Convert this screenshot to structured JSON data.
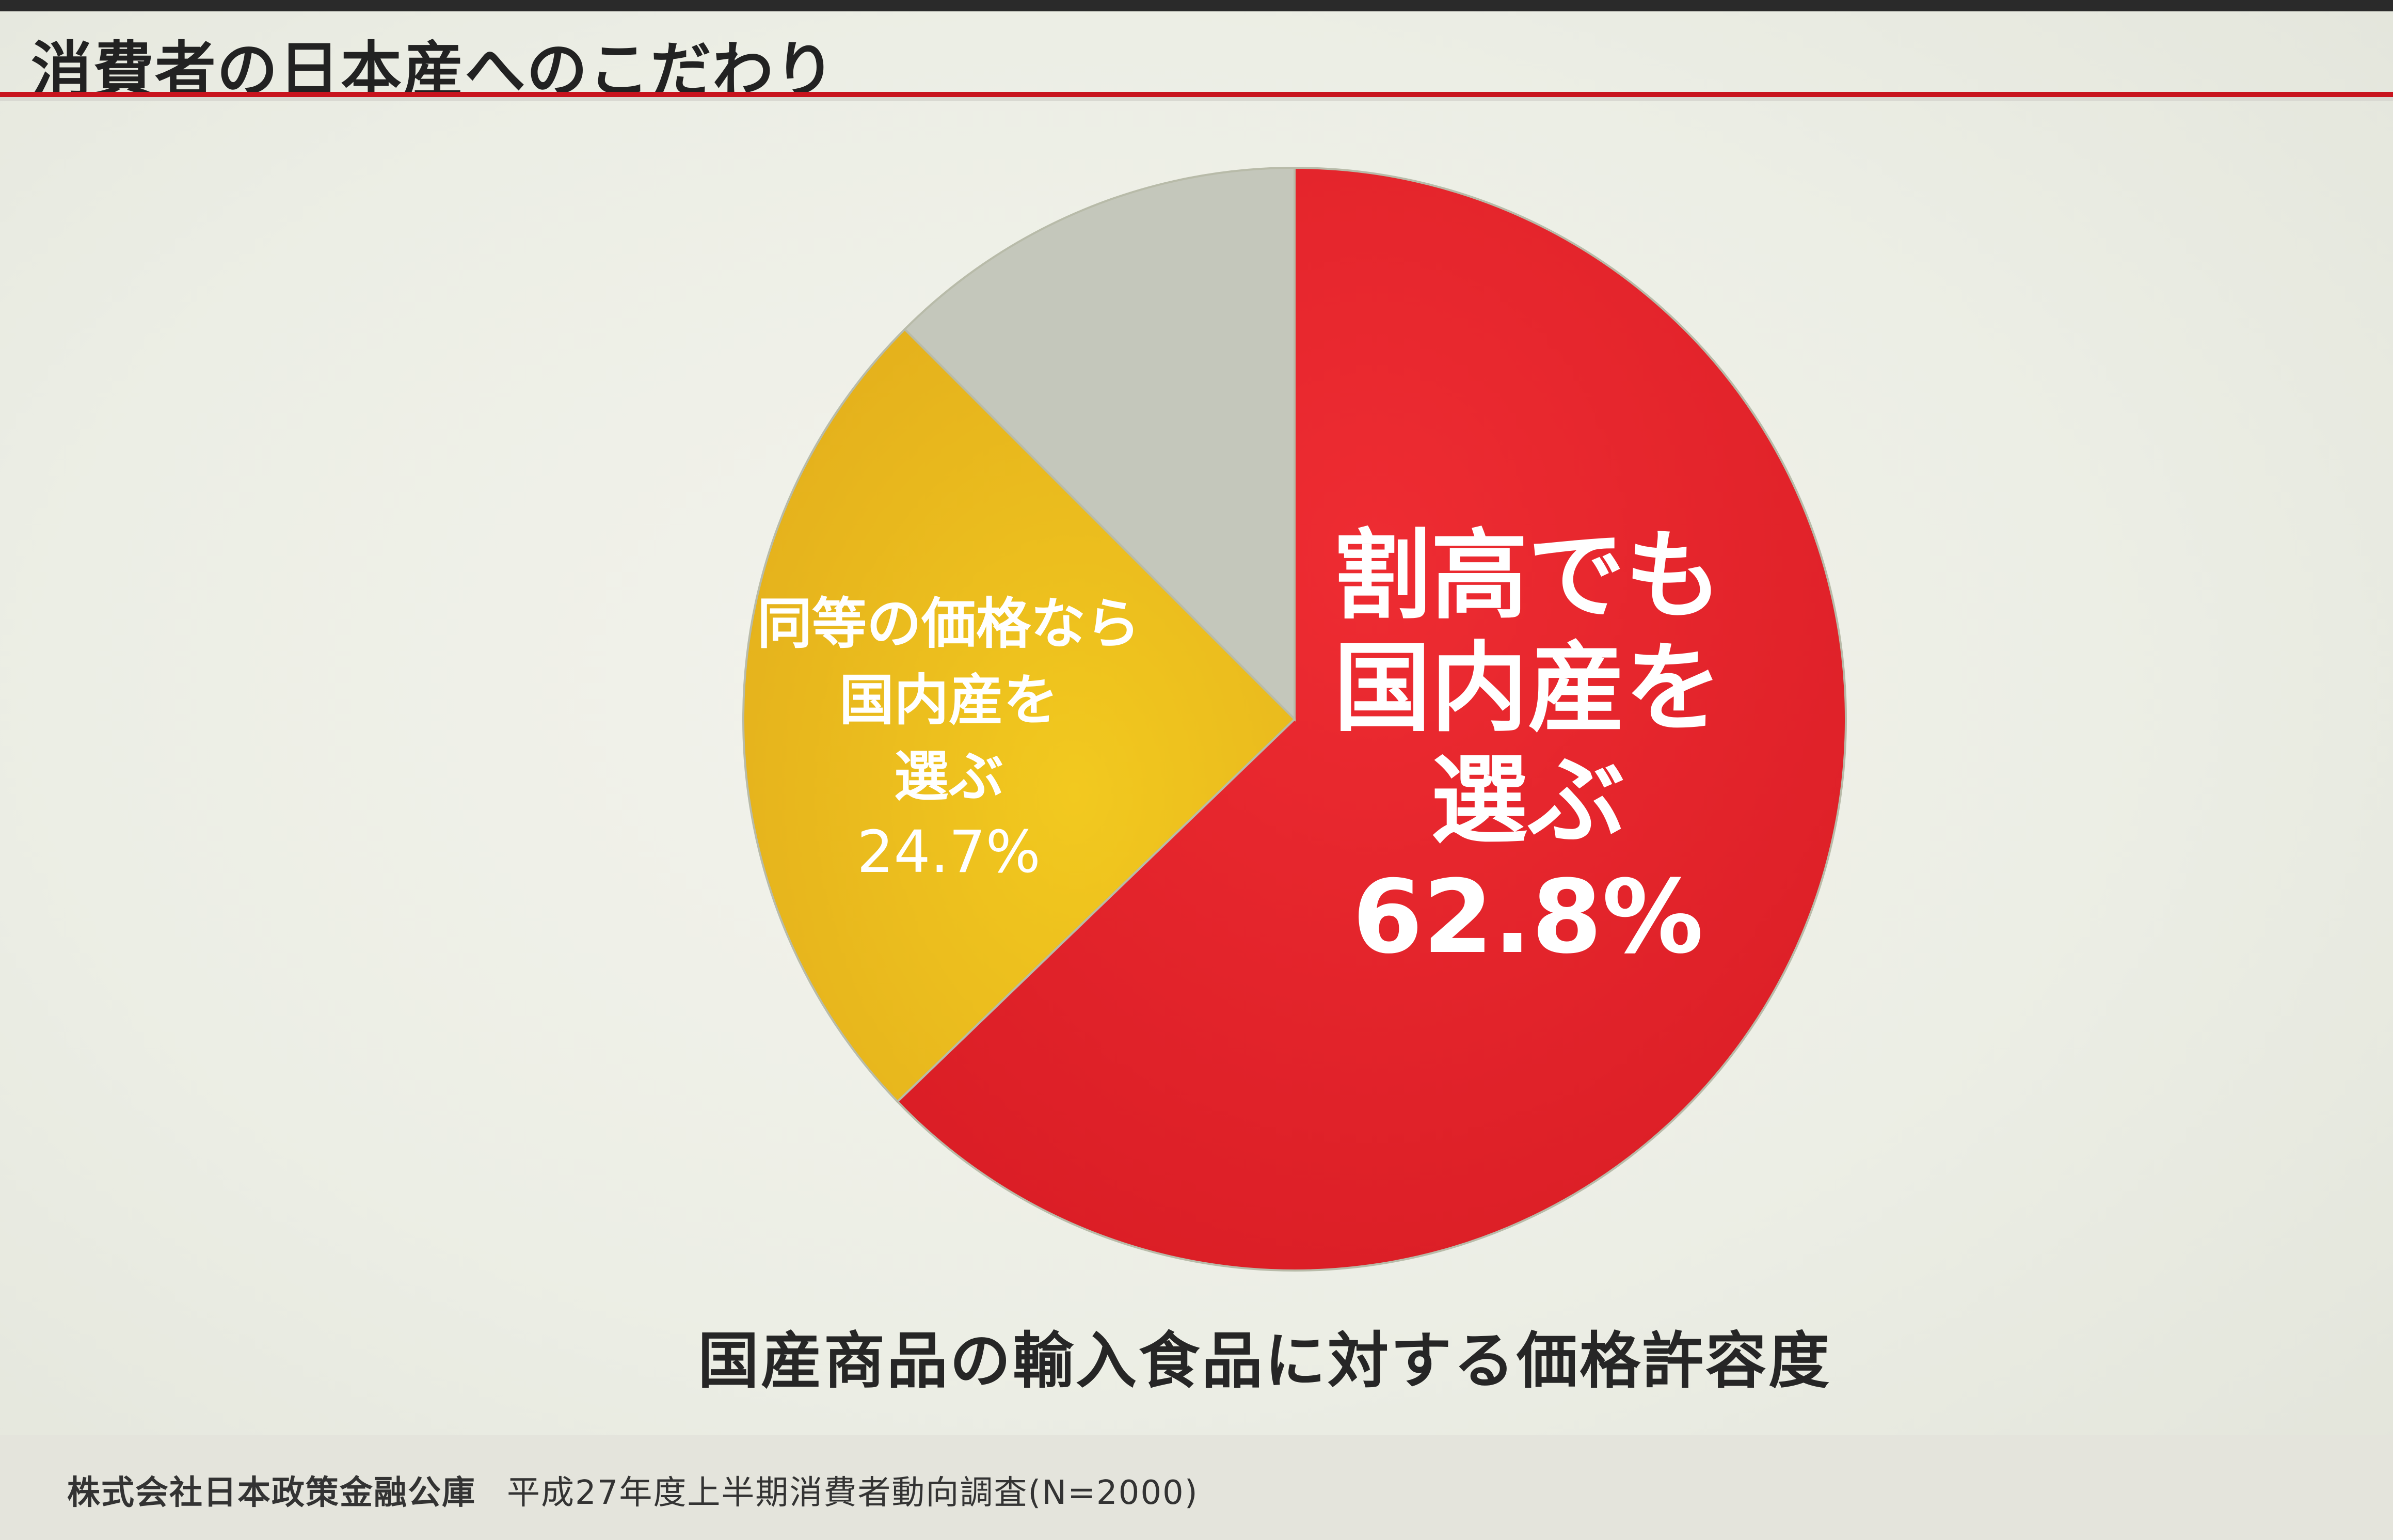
{
  "slide": {
    "title": "消費者の日本産へのこだわり",
    "caption": "国産商品の輸入食品に対する価格許容度",
    "source_org": "株式会社日本政策金融公庫",
    "source_survey": "平成27年度上半期消費者動向調査(N=2000)"
  },
  "chart_data": {
    "type": "pie",
    "title": "国産商品の輸入食品に対する価格許容度",
    "slices": [
      {
        "label_lines": [
          "割高でも",
          "国内産を",
          "選ぶ"
        ],
        "value": 62.8,
        "value_label": "62.8%",
        "color": "#e4232a"
      },
      {
        "label_lines": [
          "同等の価格なら",
          "国内産を",
          "選ぶ"
        ],
        "value": 24.7,
        "value_label": "24.7%",
        "color": "#ecbe1e"
      },
      {
        "label_lines": [],
        "value": 12.5,
        "value_label": "",
        "color": "#c4c7bb"
      }
    ]
  },
  "colors": {
    "accent": "#c8141e",
    "label_text": "#ffffff"
  }
}
